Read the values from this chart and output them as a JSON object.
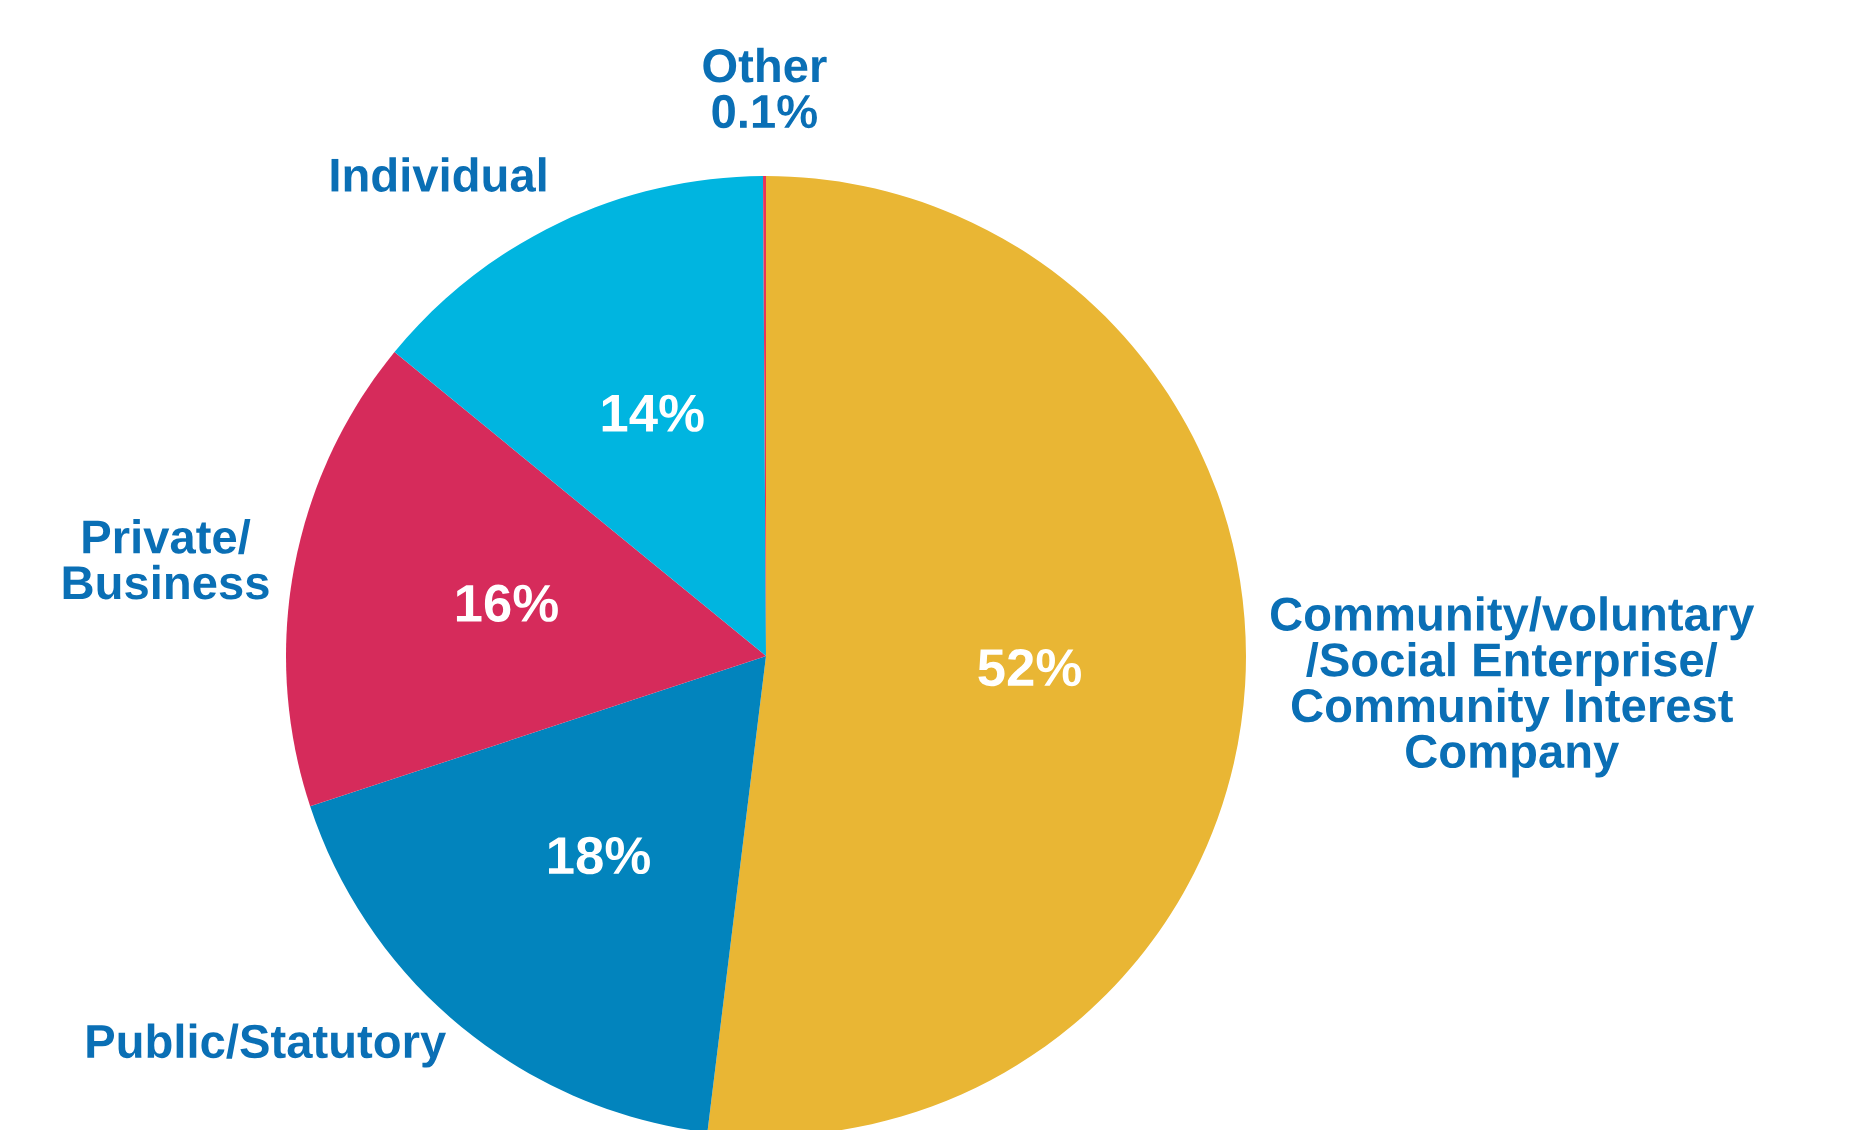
{
  "chart_data": {
    "type": "pie",
    "categories": [
      "Community/voluntary\n/Social Enterprise/\nCommunity Interest\nCompany",
      "Public/Statutory",
      "Private/\nBusiness",
      "Individual",
      "Other"
    ],
    "values": [
      52,
      18,
      16,
      14,
      0.1
    ],
    "value_labels": [
      "52%",
      "18%",
      "16%",
      "14%",
      "0.1%"
    ],
    "colors": [
      "#e9b634",
      "#0284bd",
      "#d62b5b",
      "#00b5e0",
      "#e8345a"
    ]
  }
}
